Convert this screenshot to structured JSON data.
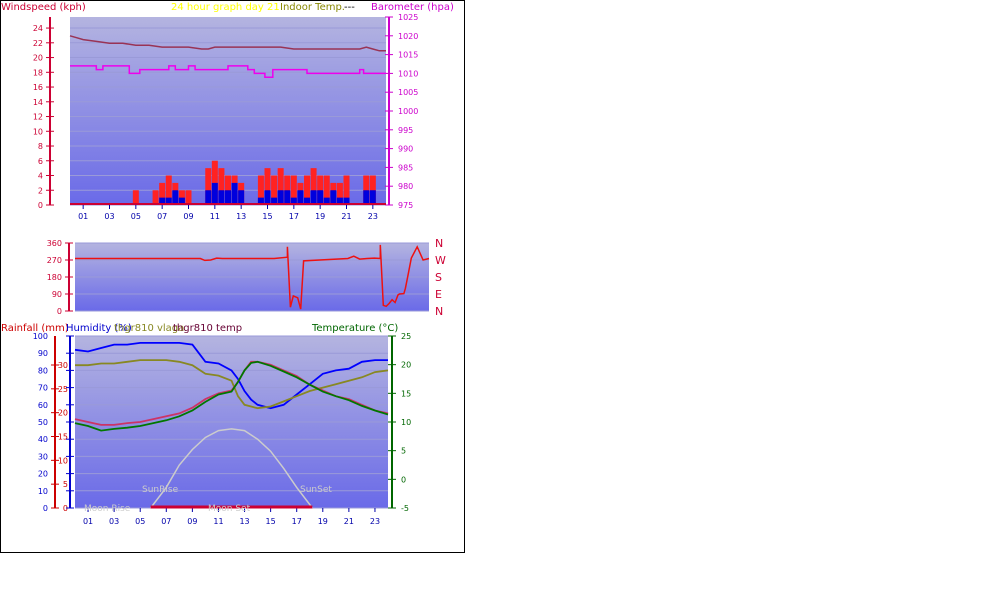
{
  "colors": {
    "wind_axis": "#cc0033",
    "baro_axis": "#cc00cc",
    "title": "#ffff00",
    "rain_axis": "#cc0000",
    "humidity_axis": "#0000cc",
    "vlaga": "#888822",
    "temp_axis": "#006600",
    "sun": "#cccccc",
    "moon": "#cc0033"
  },
  "chart_data": [
    {
      "type": "line",
      "id": "wind_baro",
      "title": "24 hour graph day",
      "title_extra": "21",
      "title_overlap": "Indoor Temp.",
      "title_dash": "---",
      "left_axis_label": "Windspeed (kph)",
      "right_axis_label": "Barometer (hpa)",
      "left_ticks": [
        "0",
        "2",
        "4",
        "6",
        "8",
        "10",
        "12",
        "14",
        "16",
        "18",
        "20",
        "22",
        "24"
      ],
      "left_range": [
        0,
        25.5
      ],
      "right_ticks": [
        "975",
        "980",
        "985",
        "990",
        "995",
        "1000",
        "1005",
        "1010",
        "1015",
        "1020",
        "1025"
      ],
      "right_range": [
        975,
        1025
      ],
      "x_ticks": [
        "01",
        "03",
        "05",
        "07",
        "09",
        "11",
        "13",
        "15",
        "17",
        "19",
        "21",
        "23"
      ],
      "x_range": [
        0,
        24
      ],
      "series": [
        {
          "name": "",
          "color": "#993355",
          "axis": "right",
          "x": [
            0,
            0.5,
            1,
            2,
            3,
            4,
            5,
            6,
            7,
            8,
            9,
            10,
            10.5,
            11,
            12,
            13,
            14,
            15,
            16,
            17,
            18,
            19,
            20,
            21,
            22,
            22.5,
            23,
            23.5,
            24
          ],
          "y": [
            1020,
            1019.5,
            1019,
            1018.5,
            1018,
            1018,
            1017.5,
            1017.5,
            1017,
            1017,
            1017,
            1016.5,
            1016.5,
            1017,
            1017,
            1017,
            1017,
            1017,
            1017,
            1016.5,
            1016.5,
            1016.5,
            1016.5,
            1016.5,
            1016.5,
            1017,
            1016.5,
            1016,
            1016
          ]
        },
        {
          "name": "",
          "color": "#ee00ee",
          "axis": "right",
          "x": [
            0,
            1,
            2,
            2,
            2.5,
            2.5,
            4.5,
            4.5,
            5.3,
            5.3,
            7.5,
            7.5,
            8,
            8,
            9,
            9,
            9.5,
            9.5,
            12,
            12,
            13.5,
            13.5,
            14,
            14,
            14.8,
            14.8,
            15.4,
            15.4,
            18,
            18,
            20.5,
            20.5,
            22,
            22,
            22.3,
            22.3,
            24
          ],
          "y": [
            1012,
            1012,
            1012,
            1011,
            1011,
            1012,
            1012,
            1010,
            1010,
            1011,
            1011,
            1012,
            1012,
            1011,
            1011,
            1012,
            1012,
            1011,
            1011,
            1012,
            1012,
            1011,
            1011,
            1010,
            1010,
            1009,
            1009,
            1011,
            1011,
            1010,
            1010,
            1010,
            1010,
            1011,
            1011,
            1010,
            1010
          ]
        }
      ],
      "gust_bars": {
        "color": "#ff2222",
        "hours": [
          5,
          6.5,
          7,
          7.5,
          8,
          8.5,
          9,
          10.5,
          11,
          11.5,
          12,
          12.5,
          13,
          14.5,
          15,
          15.5,
          16,
          16.5,
          17,
          17.5,
          18,
          18.5,
          19,
          19.5,
          20,
          20.5,
          21,
          22.5,
          23
        ],
        "values": [
          2,
          2,
          3,
          4,
          3,
          2,
          2,
          5,
          6,
          5,
          4,
          4,
          3,
          4,
          5,
          4,
          5,
          4,
          4,
          3,
          4,
          5,
          4,
          4,
          3,
          3,
          4,
          4,
          4
        ]
      },
      "avg_bars": {
        "color": "#0000dd",
        "hours": [
          7,
          7.5,
          8,
          8.5,
          10.5,
          11,
          11.5,
          12,
          12.5,
          13,
          14.5,
          15,
          15.5,
          16,
          16.5,
          17,
          17.5,
          18,
          18.5,
          19,
          19.5,
          20,
          20.5,
          21,
          22.5,
          23
        ],
        "values": [
          1,
          1,
          2,
          1,
          2,
          3,
          2,
          2,
          3,
          2,
          1,
          2,
          1,
          2,
          2,
          1,
          2,
          1,
          2,
          2,
          1,
          2,
          1,
          1,
          2,
          2
        ]
      }
    },
    {
      "type": "line",
      "id": "wind_direction",
      "left_ticks": [
        "0",
        "90",
        "180",
        "270",
        "360"
      ],
      "left_range": [
        0,
        360
      ],
      "direction_labels": [
        "N",
        "W",
        "S",
        "E",
        "N"
      ],
      "series": [
        {
          "name": "",
          "color": "#ee1111",
          "x": [
            0,
            8.5,
            8.8,
            9.2,
            9.6,
            10,
            13.5,
            14.4,
            14.4,
            14.6,
            14.8,
            15.1,
            15.3,
            15.5,
            18.5,
            18.9,
            19.3,
            19.8,
            20.3,
            20.7,
            20.7,
            20.9,
            21.1,
            21.3,
            21.5,
            21.7,
            21.9,
            22,
            22.3,
            22.4,
            22.6,
            22.8,
            23.2,
            23.6,
            24
          ],
          "y": [
            278,
            278,
            268,
            270,
            280,
            278,
            278,
            285,
            340,
            20,
            80,
            70,
            10,
            265,
            278,
            290,
            275,
            278,
            280,
            278,
            350,
            30,
            25,
            40,
            60,
            45,
            85,
            90,
            92,
            120,
            200,
            280,
            340,
            270,
            278
          ]
        }
      ]
    },
    {
      "type": "line",
      "id": "rain_humidity_temp",
      "left_axis_label": "Rainfall (mm)",
      "humidity_label": "Humidity (%)",
      "vlaga_label": "thgr810 vlaga",
      "temp810_label": "thgr810 temp",
      "right_axis_label": "Temperature (°C)",
      "rain_ticks": [
        "0",
        "5",
        "10",
        "15",
        "20",
        "25",
        "30"
      ],
      "humidity_ticks": [
        "0",
        "10",
        "20",
        "30",
        "40",
        "50",
        "60",
        "70",
        "80",
        "90",
        "100"
      ],
      "temp_ticks": [
        "-5",
        "0",
        "5",
        "10",
        "15",
        "20",
        "25"
      ],
      "humidity_range": [
        0,
        100
      ],
      "temp_range": [
        -5,
        25
      ],
      "x_ticks": [
        "01",
        "03",
        "05",
        "07",
        "09",
        "11",
        "13",
        "15",
        "17",
        "19",
        "21",
        "23"
      ],
      "sun_moon": {
        "moon_rise": "Moon Rise",
        "moon_set": "Moon Set",
        "sun_rise": "SunRise",
        "sun_set": "SunSet",
        "sun_x": [
          5.8,
          7,
          8,
          9,
          10,
          11,
          12,
          13,
          14,
          15,
          16,
          17,
          18.2
        ],
        "sun_y": [
          0,
          12,
          25,
          34,
          41,
          45,
          46,
          45,
          40,
          33,
          23,
          12,
          0
        ]
      },
      "series": [
        {
          "name": "Humidity (%)",
          "color": "#0000ff",
          "axis": "humidity",
          "x": [
            0,
            1,
            2,
            3,
            4,
            5,
            6,
            7,
            8,
            9,
            9.5,
            10,
            11,
            12,
            12.5,
            13,
            13.5,
            14,
            15,
            16,
            17,
            18,
            19,
            20,
            21,
            22,
            23,
            24
          ],
          "y": [
            92,
            91,
            93,
            95,
            95,
            96,
            96,
            96,
            96,
            95,
            90,
            85,
            84,
            80,
            75,
            68,
            63,
            60,
            58,
            60,
            66,
            72,
            78,
            80,
            81,
            85,
            86,
            86
          ]
        },
        {
          "name": "thgr810 vlaga",
          "color": "#888822",
          "axis": "humidity",
          "x": [
            0,
            1,
            2,
            3,
            4,
            5,
            6,
            7,
            8,
            9,
            10,
            11,
            12,
            12.5,
            13,
            13.5,
            14,
            15,
            16,
            17,
            18,
            19,
            20,
            21,
            22,
            23,
            24
          ],
          "y": [
            83,
            83,
            84,
            84,
            85,
            86,
            86,
            86,
            85,
            83,
            78,
            77,
            74,
            65,
            60,
            59,
            58,
            59,
            62,
            65,
            68,
            70,
            72,
            74,
            76,
            79,
            80
          ]
        },
        {
          "name": "thgr810 temp",
          "color": "#cc3366",
          "axis": "temp",
          "x": [
            0,
            1,
            2,
            3,
            4,
            5,
            6,
            7,
            8,
            9,
            10,
            11,
            12,
            12.5,
            13,
            13.5,
            14,
            15,
            16,
            17,
            18,
            19,
            20,
            21,
            22,
            23,
            24
          ],
          "y": [
            10.5,
            10,
            9.5,
            9.5,
            9.8,
            10,
            10.5,
            11,
            11.5,
            12.5,
            14,
            15,
            15.5,
            17,
            19,
            20.5,
            20.5,
            20,
            19,
            18,
            16.5,
            15.5,
            14.5,
            14,
            13,
            12,
            11.5
          ]
        },
        {
          "name": "Temperature (°C)",
          "color": "#007700",
          "axis": "temp",
          "x": [
            0,
            1,
            2,
            3,
            4,
            5,
            6,
            7,
            8,
            9,
            10,
            11,
            12,
            12.5,
            13,
            13.5,
            14,
            15,
            16,
            17,
            18,
            19,
            20,
            21,
            22,
            23,
            24
          ],
          "y": [
            9.8,
            9.3,
            8.5,
            8.8,
            9,
            9.3,
            9.8,
            10.3,
            11,
            12,
            13.5,
            14.8,
            15.3,
            17,
            19,
            20.3,
            20.5,
            19.8,
            18.8,
            17.8,
            16.5,
            15.3,
            14.5,
            13.8,
            12.8,
            12,
            11.3
          ]
        }
      ]
    }
  ]
}
